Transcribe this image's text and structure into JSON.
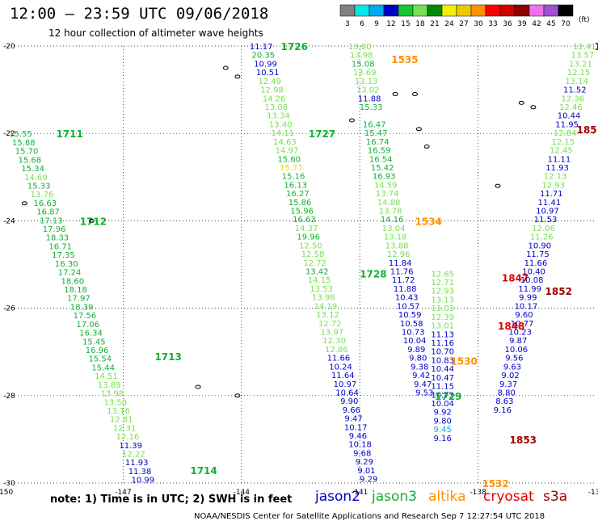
{
  "header": {
    "title": "12:00 – 23:59 UTC 09/06/2018",
    "subtitle": "12 hour collection of altimeter wave heights"
  },
  "colorbar": {
    "unit": "(ft)",
    "labels": [
      "3",
      "6",
      "9",
      "12",
      "15",
      "18",
      "21",
      "24",
      "27",
      "30",
      "33",
      "36",
      "39",
      "42",
      "45",
      "70"
    ],
    "colors": [
      "#808080",
      "#00e8e8",
      "#00a8f0",
      "#0000c8",
      "#10c830",
      "#78e050",
      "#008c00",
      "#f0f000",
      "#f0c800",
      "#ff9000",
      "#ff0000",
      "#d00000",
      "#8c0000",
      "#f070f0",
      "#a050d0",
      "#000000"
    ]
  },
  "note": "note:  1) Time is in UTC;  2) SWH is in feet",
  "legend": [
    {
      "name": "jason2",
      "color": "#0000c8"
    },
    {
      "name": "jason3",
      "color": "#10b030"
    },
    {
      "name": "altika",
      "color": "#ff9000"
    },
    {
      "name": "cryosat",
      "color": "#e00000"
    },
    {
      "name": "s3a",
      "color": "#a00000"
    }
  ],
  "footer": "NOAA/NESDIS Center for Satellite Applications and Research    Sep  7 12:27:54 UTC 2018",
  "chart_data": {
    "type": "scatter",
    "xlim": [
      -150,
      -135
    ],
    "ylim": [
      -30,
      -20
    ],
    "x_ticks": [
      "-150",
      "-147",
      "-144",
      "-141",
      "-138",
      "-135"
    ],
    "x_tick_values": [
      -150,
      -147,
      -144,
      -141,
      -138,
      -135
    ],
    "y_ticks": [
      "-20",
      "-22",
      "-24",
      "-26",
      "-28",
      "-30"
    ],
    "y_tick_values": [
      -20,
      -22,
      -24,
      -26,
      -28,
      -30
    ],
    "grid": "dotted",
    "colors": {
      "j3": "#10b030",
      "j3l": "#78e050",
      "j2": "#0000c8",
      "al": "#ff9000",
      "cr": "#e00000",
      "s3": "#a00000",
      "cy": "#00a8f0",
      "yl": "#e8e000"
    },
    "track_labels": [
      {
        "t": "1711",
        "x": -148.7,
        "y": -22.0,
        "c": "j3"
      },
      {
        "t": "1712",
        "x": -148.1,
        "y": -24.0,
        "c": "j3"
      },
      {
        "t": "1713",
        "x": -146.2,
        "y": -27.1,
        "c": "j3"
      },
      {
        "t": "1714",
        "x": -145.3,
        "y": -29.7,
        "c": "j3"
      },
      {
        "t": "1726",
        "x": -143.0,
        "y": -20.0,
        "c": "j3"
      },
      {
        "t": "1727",
        "x": -142.3,
        "y": -22.0,
        "c": "j3"
      },
      {
        "t": "1728",
        "x": -141.0,
        "y": -25.2,
        "c": "j3"
      },
      {
        "t": "1729",
        "x": -139.1,
        "y": -28.0,
        "c": "j3"
      },
      {
        "t": "1535",
        "x": -140.2,
        "y": -20.3,
        "c": "al"
      },
      {
        "t": "1534",
        "x": -139.6,
        "y": -24.0,
        "c": "al"
      },
      {
        "t": "1530",
        "x": -138.7,
        "y": -27.2,
        "c": "al"
      },
      {
        "t": "1532",
        "x": -137.9,
        "y": -30.0,
        "c": "al"
      },
      {
        "t": "1847",
        "x": -137.4,
        "y": -25.3,
        "c": "cr"
      },
      {
        "t": "1848",
        "x": -137.5,
        "y": -26.4,
        "c": "cr"
      },
      {
        "t": "1852",
        "x": -136.3,
        "y": -25.6,
        "c": "s3"
      },
      {
        "t": "1853",
        "x": -137.2,
        "y": -29.0,
        "c": "s3"
      },
      {
        "t": "185",
        "x": -135.5,
        "y": -21.9,
        "c": "s3"
      },
      {
        "t": "1",
        "x": -135.05,
        "y": -20.0,
        "c": "s3"
      }
    ],
    "tracks": [
      {
        "name": "1711-1714",
        "x0": -149.6,
        "y0": -22.0,
        "dx": 0.0775,
        "dy": -0.198,
        "color": "j3",
        "values": [
          "15.55",
          "15.88",
          "15.70",
          "15.68",
          "15.34",
          "14.69",
          "15.33",
          "13.76",
          "16.63",
          "16.87",
          "17.13",
          "17.96",
          "18.33",
          "16.71",
          "17.35",
          "16.30",
          "17.24",
          "18.60",
          "18.18",
          "17.97",
          "18.39",
          "17.56",
          "17.06",
          "16.34",
          "15.45",
          "16.96",
          "15.54",
          "15.44",
          "14.51",
          "13.89",
          "13.98",
          "13.50",
          "13.16",
          "12.81",
          "12.31",
          "12.16",
          "11.39",
          "12.22",
          "11.93",
          "11.38",
          "10.99"
        ],
        "cmap": [
          "j3",
          "j3",
          "j3",
          "j3",
          "j3",
          "j3l",
          "j3",
          "j3l",
          "j3",
          "j3",
          "j3",
          "j3",
          "j3",
          "j3",
          "j3",
          "j3",
          "j3",
          "j3",
          "j3",
          "j3",
          "j3",
          "j3",
          "j3",
          "j3",
          "j3",
          "j3",
          "j3",
          "j3",
          "j3l",
          "j3l",
          "j3l",
          "j3l",
          "j3l",
          "j3l",
          "j3l",
          "j3l",
          "j2",
          "j3l",
          "j2",
          "j2",
          "j2"
        ]
      },
      {
        "name": "1726-1728",
        "x0": -143.5,
        "y0": -20.0,
        "dx": 0.0545,
        "dy": -0.198,
        "color": "j3",
        "values": [
          "11.17",
          "20.35",
          "10.99",
          "10.51",
          "12.49",
          "12.98",
          "14.26",
          "13.08",
          "13.34",
          "13.40",
          "14.11",
          "14.63",
          "14.97",
          "15.60",
          "15.77",
          "15.16",
          "16.13",
          "16.27",
          "15.86",
          "15.96",
          "16.63",
          "14.37",
          "19.96",
          "12.50",
          "12.58",
          "12.72",
          "13.42",
          "14.15",
          "13.53",
          "13.98",
          "14.19",
          "13.12",
          "12.72",
          "13.97",
          "12.30",
          "12.86",
          "11.66",
          "10.24",
          "11.64",
          "10.97",
          "10.64",
          "9.90",
          "9.66",
          "9.47",
          "10.17",
          "9.46",
          "10.18",
          "9.68",
          "9.29",
          "9.01",
          "9.29"
        ],
        "cmap": [
          "j2",
          "j3",
          "j2",
          "j2",
          "j3l",
          "j3l",
          "j3l",
          "j3l",
          "j3l",
          "j3l",
          "j3l",
          "j3l",
          "j3l",
          "j3",
          "yl",
          "j3",
          "j3",
          "j3",
          "j3",
          "j3",
          "j3",
          "j3l",
          "j3",
          "j3l",
          "j3l",
          "j3l",
          "j3",
          "j3l",
          "j3l",
          "j3l",
          "j3l",
          "j3l",
          "j3l",
          "j3l",
          "j3l",
          "j3l",
          "j2",
          "j2",
          "j2",
          "j2",
          "j2",
          "j2",
          "j2",
          "j2",
          "j2",
          "j2",
          "j2",
          "j2",
          "j2",
          "j2",
          "j2"
        ]
      },
      {
        "name": "1535-1534",
        "x0": -141.0,
        "y0": -20.0,
        "dx": 0.041,
        "dy": -0.198,
        "color": "j3l",
        "values": [
          "13.80",
          "13.98",
          "15.08",
          "13.69",
          "13.13",
          "13.02",
          "11.88",
          "15.33",
          "",
          "16.47",
          "15.47",
          "16.74",
          "16.59",
          "16.54",
          "15.42",
          "16.93",
          "14.59",
          "13.74",
          "14.88",
          "13.78",
          "14.16",
          "13.04",
          "13.18",
          "13.88",
          "12.96",
          "11.84",
          "11.76",
          "11.72",
          "11.88",
          "10.43",
          "10.57",
          "10.59",
          "10.58",
          "10.73",
          "10.04",
          "9.89",
          "9.80",
          "9.38",
          "9.42",
          "9.47",
          "9.53"
        ],
        "cmap": [
          "j3l",
          "j3l",
          "j3",
          "j3l",
          "j3l",
          "j3l",
          "j2",
          "j3",
          "j3l",
          "j3",
          "j3",
          "j3",
          "j3",
          "j3",
          "j3",
          "j3",
          "j3l",
          "j3l",
          "j3l",
          "j3l",
          "j3",
          "j3l",
          "j3l",
          "j3l",
          "j3l",
          "j2",
          "j2",
          "j2",
          "j2",
          "j2",
          "j2",
          "j2",
          "j2",
          "j2",
          "j2",
          "j2",
          "j2",
          "j2",
          "j2",
          "j2",
          "j2"
        ]
      },
      {
        "name": "1847-1848",
        "x0": -138.9,
        "y0": -25.2,
        "dx": 0.0,
        "dy": -0.198,
        "color": "j3l",
        "values": [
          "12.65",
          "12.71",
          "12.93",
          "13.13",
          "13.03",
          "12.39",
          "13.01",
          "11.13",
          "11.16",
          "10.70",
          "10.83",
          "10.44",
          "10.47",
          "11.15",
          "10.73",
          "10.04",
          "9.92",
          "9.80",
          "9.45",
          "9.16"
        ],
        "cmap": [
          "j3l",
          "j3l",
          "j3l",
          "j3l",
          "j3l",
          "j3l",
          "j3l",
          "j2",
          "j2",
          "j2",
          "j2",
          "j2",
          "j2",
          "j2",
          "j2",
          "j2",
          "j2",
          "j2",
          "cy",
          "j2"
        ]
      },
      {
        "name": "185-1853",
        "x0": -135.3,
        "y0": -20.0,
        "dx": -0.0495,
        "dy": -0.198,
        "color": "j3l",
        "values": [
          "12.41",
          "13.57",
          "13.21",
          "12.15",
          "13.14",
          "11.52",
          "12.36",
          "12.46",
          "10.44",
          "11.95",
          "12.84",
          "12.15",
          "12.45",
          "11.11",
          "11.93",
          "12.13",
          "12.93",
          "11.71",
          "11.41",
          "10.97",
          "11.53",
          "12.06",
          "11.26",
          "10.90",
          "11.75",
          "11.66",
          "10.40",
          "10.08",
          "11.99",
          "9.99",
          "10.17",
          "9.60",
          "10.77",
          "10.23",
          "9.87",
          "10.06",
          "9.56",
          "9.63",
          "9.02",
          "9.37",
          "8.80",
          "8.63",
          "9.16"
        ],
        "cmap": [
          "j3l",
          "j3l",
          "j3l",
          "j3l",
          "j3l",
          "j2",
          "j3l",
          "j3l",
          "j2",
          "j2",
          "j3l",
          "j3l",
          "j3l",
          "j2",
          "j2",
          "j3l",
          "j3l",
          "j2",
          "j2",
          "j2",
          "j2",
          "j3l",
          "j3l",
          "j2",
          "j2",
          "j2",
          "j2",
          "j2",
          "j2",
          "j2",
          "j2",
          "j2",
          "j2",
          "j2",
          "j2",
          "j2",
          "j2",
          "j2",
          "j2",
          "j2",
          "j2",
          "j2",
          "j2"
        ]
      }
    ]
  }
}
